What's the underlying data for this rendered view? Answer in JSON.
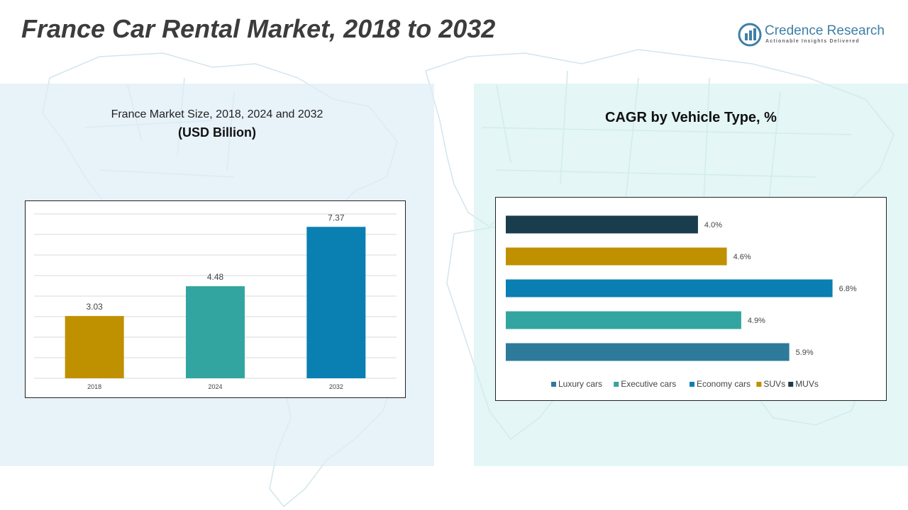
{
  "header": {
    "title": "France Car Rental Market, 2018 to 2032"
  },
  "logo": {
    "name": "Credence Research",
    "tagline": "Actionable Insights Delivered",
    "icon": "credence-logo-icon"
  },
  "left_panel": {
    "subtitle": "France Market Size, 2018, 2024 and 2032",
    "unit": "(USD Billion)"
  },
  "right_panel": {
    "title": "CAGR by Vehicle Type, %"
  },
  "chart_data": [
    {
      "type": "bar",
      "categories": [
        "2018",
        "2024",
        "2032"
      ],
      "values": [
        3.03,
        4.48,
        7.37
      ],
      "value_labels": [
        "3.03",
        "4.48",
        "7.37"
      ],
      "colors": [
        "#bf9000",
        "#33a5a0",
        "#0a7fb2"
      ],
      "ylim": [
        0,
        8
      ],
      "grid": true,
      "legend": "none"
    },
    {
      "type": "bar",
      "orientation": "horizontal",
      "categories": [
        "MUVs",
        "SUVs",
        "Economy cars",
        "Executive cars",
        "Luxury cars"
      ],
      "values": [
        4.0,
        4.6,
        6.8,
        4.9,
        5.9
      ],
      "value_labels": [
        "4.0%",
        "4.6%",
        "6.8%",
        "4.9%",
        "5.9%"
      ],
      "colors": [
        "#1a3d4d",
        "#bf9000",
        "#0a7fb2",
        "#33a5a0",
        "#2e7a9a"
      ],
      "xlim": [
        0,
        7.5
      ],
      "grid": false,
      "legend": "bottom",
      "legend_order": [
        "Luxury cars",
        "Executive cars",
        "Economy cars",
        "SUVs",
        "MUVs"
      ]
    }
  ]
}
